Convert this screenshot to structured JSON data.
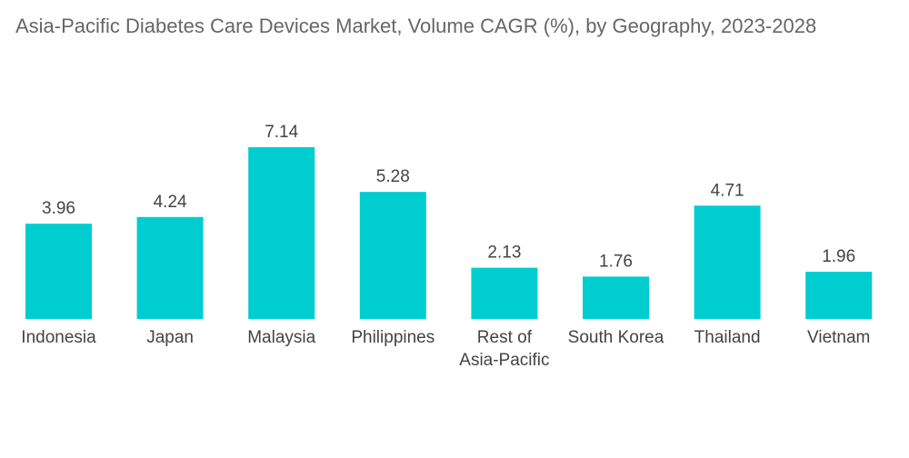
{
  "chart_data": {
    "type": "bar",
    "title": "Asia-Pacific Diabetes Care Devices Market, Volume CAGR (%), by Geography, 2023-2028",
    "categories": [
      [
        "Indonesia"
      ],
      [
        "Japan"
      ],
      [
        "Malaysia"
      ],
      [
        "Philippines"
      ],
      [
        "Rest of",
        "Asia-Pacific"
      ],
      [
        "South Korea"
      ],
      [
        "Thailand"
      ],
      [
        "Vietnam"
      ]
    ],
    "values": [
      3.96,
      4.24,
      7.14,
      5.28,
      2.13,
      1.76,
      4.71,
      1.96
    ],
    "value_labels": [
      "3.96",
      "4.24",
      "7.14",
      "5.28",
      "2.13",
      "1.76",
      "4.71",
      "1.96"
    ],
    "xlabel": "",
    "ylabel": "",
    "ylim": [
      0,
      7.14
    ],
    "grid": false,
    "legend": "none",
    "bar_color": "#00CDD0"
  }
}
